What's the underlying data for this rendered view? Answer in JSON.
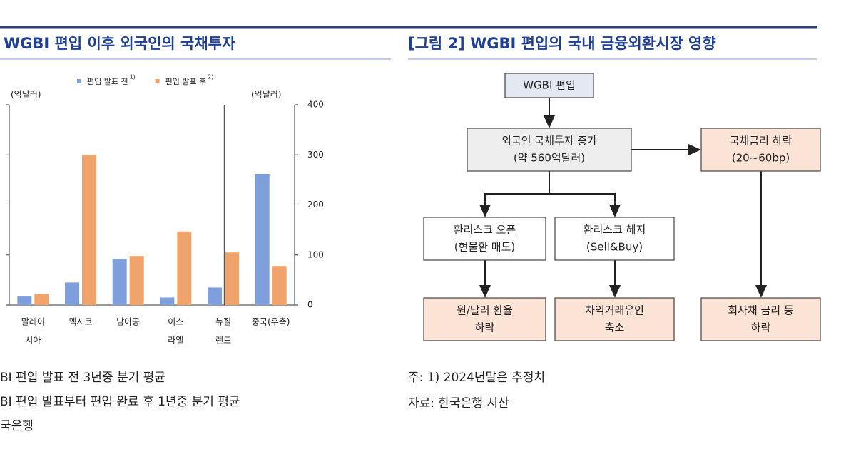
{
  "chart_data": {
    "type": "bar",
    "title": "WGBI 편입 이후 외국인의 국채투자",
    "y_unit_label": "(억달러)",
    "y2_unit_label": "(억달러)",
    "categories": [
      [
        "말레이",
        "시아"
      ],
      [
        "멕시코"
      ],
      [
        "남아공"
      ],
      [
        "이스",
        "라엘"
      ],
      [
        "뉴질",
        "랜드"
      ],
      [
        "중국(우측)"
      ]
    ],
    "series": [
      {
        "name": "편입 발표 전",
        "note": "1)",
        "color": "#7f9fdc",
        "values": [
          17,
          45,
          92,
          15,
          35,
          262
        ]
      },
      {
        "name": "편입 발표 후",
        "note": "2)",
        "color": "#f0a46c",
        "values": [
          22,
          300,
          98,
          147,
          105,
          78
        ]
      }
    ],
    "ylim": [
      0,
      400
    ],
    "yticks": [
      0,
      100,
      200,
      300,
      400
    ],
    "legend": "top",
    "notes": [
      "BI 편입 발표 전 3년중 분기 평균",
      "BI 편입 발표부터 편입 완료 후 1년중 분기 평균",
      "국은행"
    ]
  },
  "figure": {
    "title": "[그림 2] WGBI 편입의 국내 금융외환시장 영향",
    "nodes": [
      {
        "lines": [
          "WGBI 편입"
        ]
      },
      {
        "lines": [
          "외국인 국채투자 증가",
          "(약 560억달러)"
        ]
      },
      {
        "lines": [
          "국채금리 하락",
          "(20~60bp)"
        ]
      },
      {
        "lines": [
          "환리스크 오픈",
          "(현물환 매도)"
        ]
      },
      {
        "lines": [
          "환리스크 헤지",
          "(Sell&Buy)"
        ]
      },
      {
        "lines": [
          "원/달러 환율",
          "하락"
        ]
      },
      {
        "lines": [
          "차익거래유인",
          "축소"
        ]
      },
      {
        "lines": [
          "회사채 금리 등",
          "하락"
        ]
      }
    ],
    "notes": [
      "주: 1) 2024년말은 추정치",
      "자료: 한국은행 시산"
    ]
  }
}
